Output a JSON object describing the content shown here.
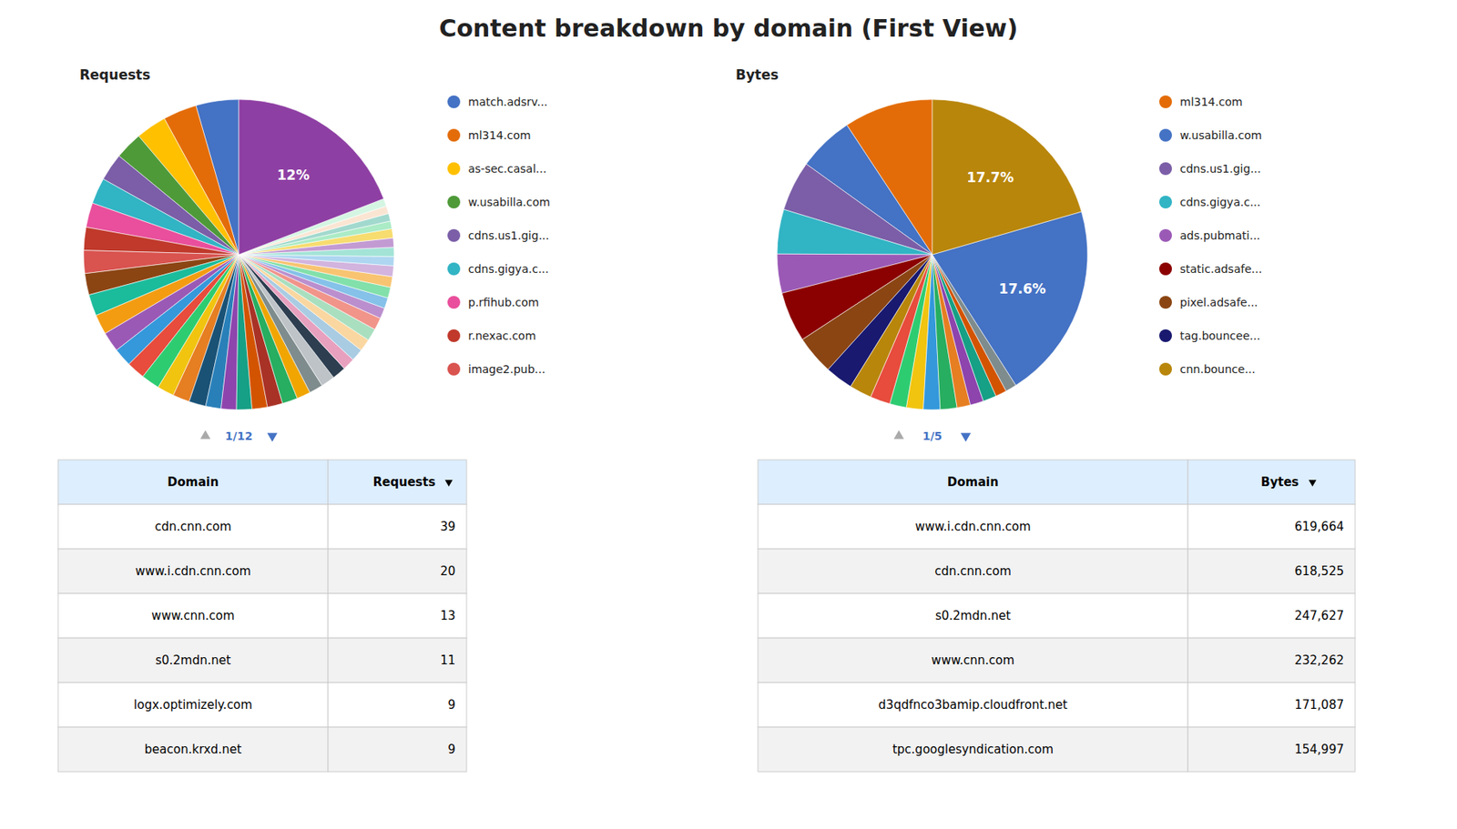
{
  "title": "Content breakdown by domain (First View)",
  "chart_data": [
    {
      "type": "pie",
      "title": "Requests",
      "values": [
        2.8,
        2.2,
        2.0,
        1.8,
        1.8,
        1.7,
        1.6,
        1.5,
        1.5,
        1.4,
        1.4,
        1.3,
        1.3,
        1.2,
        1.2,
        1.2,
        1.1,
        1.1,
        1.1,
        1.0,
        1.0,
        1.0,
        1.0,
        1.0,
        1.0,
        0.9,
        0.9,
        0.9,
        0.9,
        0.8,
        0.8,
        0.8,
        0.8,
        0.8,
        0.7,
        0.7,
        0.7,
        0.7,
        0.7,
        0.6,
        0.6,
        0.6,
        0.6,
        0.5,
        0.5,
        0.5,
        0.5,
        12.0
      ],
      "categories": [
        "match.adsrv...",
        "ml314.com",
        "as-sec.casal...",
        "w.usabilla.com",
        "cdns.us1.gig...",
        "cdns.gigya.c...",
        "p.rfihub.com",
        "r.nexac.com",
        "image2.pub...",
        null,
        null,
        null,
        null,
        null,
        null,
        null,
        null,
        null,
        null,
        null,
        null,
        null,
        null,
        null,
        null,
        null,
        null,
        null,
        null,
        null,
        null,
        null,
        null,
        null,
        null,
        null,
        null,
        null,
        null,
        null,
        null,
        null,
        null,
        null,
        null,
        null,
        null,
        null
      ],
      "colors": [
        "#4472C4",
        "#E36C09",
        "#FFC000",
        "#4E9A39",
        "#7B5EA7",
        "#31B4C4",
        "#E94F9C",
        "#C0392B",
        "#D9534F",
        "#8B4513",
        "#1ABC9C",
        "#F39C12",
        "#9B59B6",
        "#3498DB",
        "#E74C3C",
        "#2ECC71",
        "#F1C40F",
        "#E67E22",
        "#1A5276",
        "#2980B9",
        "#8E44AD",
        "#16A085",
        "#D35400",
        "#A93226",
        "#27AE60",
        "#F0A500",
        "#7F8C8D",
        "#BDC3C7",
        "#2C3E50",
        "#E8A0BF",
        "#A9CCE3",
        "#FAD7A0",
        "#A9DFBF",
        "#F1948A",
        "#BB8FCE",
        "#85C1E9",
        "#82E0AA",
        "#F8C471",
        "#D2B4DE",
        "#AED6F1",
        "#A3E4D7",
        "#C39BD3",
        "#F7DC6F",
        "#ABEBC6",
        "#A2D9CE",
        "#FAE5D3",
        "#D5F5E3",
        "#8E3FA3"
      ],
      "data_labels": true,
      "value_labels": [
        null,
        null,
        null,
        null,
        null,
        null,
        null,
        null,
        null,
        null,
        null,
        null,
        null,
        null,
        null,
        null,
        null,
        null,
        null,
        null,
        null,
        null,
        null,
        null,
        null,
        null,
        null,
        null,
        null,
        null,
        null,
        null,
        null,
        null,
        null,
        null,
        null,
        null,
        null,
        null,
        null,
        null,
        null,
        null,
        null,
        null,
        null,
        "12%"
      ],
      "annotations": [
        "1/12"
      ],
      "table": {
        "headers": [
          "Domain",
          "Requests"
        ],
        "rows": [
          [
            "cdn.cnn.com",
            "39"
          ],
          [
            "www.i.cdn.cnn.com",
            "20"
          ],
          [
            "www.cnn.com",
            "13"
          ],
          [
            "s0.2mdn.net",
            "11"
          ],
          [
            "logx.optimizely.com",
            "9"
          ],
          [
            "beacon.krxd.net",
            "9"
          ]
        ]
      }
    },
    {
      "type": "pie",
      "title": "Bytes",
      "values": [
        8.0,
        5.0,
        4.5,
        4.0,
        3.5,
        4.5,
        3.5,
        2.5,
        2.0,
        1.8,
        1.5,
        1.5,
        1.5,
        1.5,
        1.2,
        1.2,
        1.2,
        1.0,
        1.0,
        17.6,
        17.7
      ],
      "categories": [
        "ml314.com",
        "w.usabilla.com",
        "cdns.us1.gig...",
        "cdns.gigya.c...",
        "ads.pubmati...",
        "static.adsafe...",
        "pixel.adsafe...",
        "tag.bouncee...",
        "cnn.bounce...",
        null,
        null,
        null,
        null,
        null,
        null,
        null,
        null,
        null,
        null,
        null,
        null
      ],
      "colors": [
        "#E36C09",
        "#4472C4",
        "#7B5EA7",
        "#31B4C4",
        "#9B59B6",
        "#8B0000",
        "#8B4513",
        "#191970",
        "#B8860B",
        "#E74C3C",
        "#2ECC71",
        "#F1C40F",
        "#3498DB",
        "#27AE60",
        "#E67E22",
        "#8E44AD",
        "#16A085",
        "#D35400",
        "#7F8C8D",
        "#4472C4",
        "#B8860B"
      ],
      "data_labels": true,
      "value_labels": [
        null,
        null,
        null,
        null,
        null,
        null,
        null,
        null,
        null,
        null,
        null,
        null,
        null,
        null,
        null,
        null,
        null,
        null,
        null,
        "17.6%",
        "17.7%"
      ],
      "annotations": [
        "1/5"
      ],
      "table": {
        "headers": [
          "Domain",
          "Bytes"
        ],
        "rows": [
          [
            "www.i.cdn.cnn.com",
            "619,664"
          ],
          [
            "cdn.cnn.com",
            "618,525"
          ],
          [
            "s0.2mdn.net",
            "247,627"
          ],
          [
            "www.cnn.com",
            "232,262"
          ],
          [
            "d3qdfnco3bamip.cloudfront.net",
            "171,087"
          ],
          [
            "tpc.googlesyndication.com",
            "154,997"
          ]
        ]
      }
    }
  ]
}
